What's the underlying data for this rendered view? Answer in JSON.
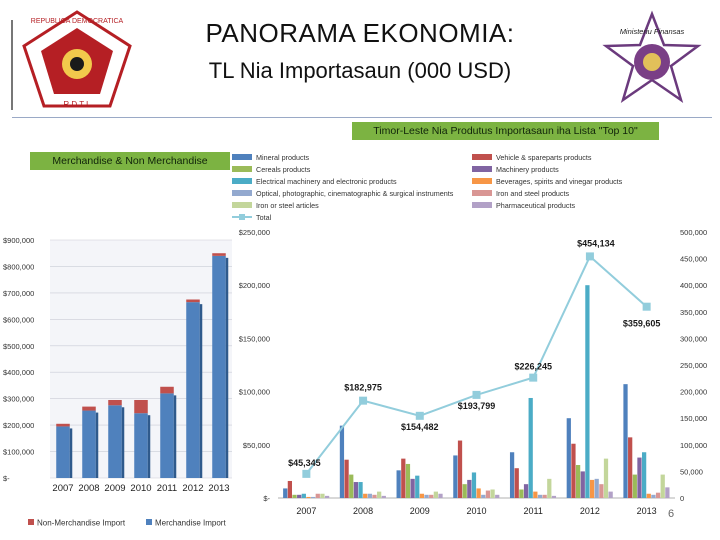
{
  "header": {
    "title": "PANORAMA EKONOMIA:",
    "subtitle": "TL  Nia Importasaun (000 USD)",
    "left_logo_text": "REPUBLICA DEMOCRATICA DE TIMOR LESTE — R D T L",
    "right_logo_text": "Ministeriu Finansas — Republica Democratica de Timor-Leste"
  },
  "badges": {
    "left": "Merchandise & Non Merchandise",
    "right": "Timor-Leste Nia Produtus Importasaun iha Lista \"Top 10\""
  },
  "page_number": "6",
  "colors": {
    "blue": "#4f81bd",
    "red": "#c0504d",
    "green": "#9bbb59",
    "purple": "#8064a2",
    "teal": "#4bacc6",
    "orange": "#f79646",
    "lightblue": "#93a9cf",
    "pink": "#d99694",
    "lightgreen": "#c3d69b",
    "mauve": "#b2a1c7",
    "line": "#92cddc"
  },
  "chart_data": [
    {
      "type": "bar",
      "stacked": true,
      "categories": [
        "2007",
        "2008",
        "2009",
        "2010",
        "2011",
        "2012",
        "2013"
      ],
      "series": [
        {
          "name": "Non-Merchandise Import",
          "values": [
            10000,
            15000,
            20000,
            50000,
            25000,
            10000,
            10000
          ],
          "color": "#c0504d"
        },
        {
          "name": "Merchandise Import",
          "values": [
            195000,
            255000,
            275000,
            245000,
            320000,
            665000,
            840000
          ],
          "color": "#4f81bd"
        }
      ],
      "ylim": [
        0,
        900000
      ],
      "yticks": [
        0,
        100000,
        200000,
        300000,
        400000,
        500000,
        600000,
        700000,
        800000,
        900000
      ],
      "ytick_labels": [
        "$-",
        "$100,000",
        "$200,000",
        "$300,000",
        "$400,000",
        "$500,000",
        "$600,000",
        "$700,000",
        "$800,000",
        "$900,000"
      ],
      "legend": "bottom"
    },
    {
      "type": "bar",
      "categories": [
        "2007",
        "2008",
        "2009",
        "2010",
        "2011",
        "2012",
        "2013"
      ],
      "series": [
        {
          "name": "Mineral products",
          "values": [
            9000,
            68000,
            26000,
            40000,
            43000,
            75000,
            107000
          ],
          "color": "#4f81bd",
          "axis": "left"
        },
        {
          "name": "Vehicle & spareparts products",
          "values": [
            16000,
            36000,
            37000,
            54000,
            28000,
            51000,
            57000
          ],
          "color": "#c0504d",
          "axis": "left"
        },
        {
          "name": "Cereals products",
          "values": [
            3000,
            22000,
            32000,
            13000,
            8000,
            31000,
            22000
          ],
          "color": "#9bbb59",
          "axis": "left"
        },
        {
          "name": "Machinery products",
          "values": [
            3000,
            15000,
            18000,
            17000,
            13000,
            25000,
            38000
          ],
          "color": "#8064a2",
          "axis": "left"
        },
        {
          "name": "Electrical machinery and electronic products",
          "values": [
            4000,
            15000,
            21000,
            24000,
            94000,
            200000,
            43000
          ],
          "color": "#4bacc6",
          "axis": "left"
        },
        {
          "name": "Beverages, spirits and vinegar products",
          "values": [
            1000,
            4000,
            4000,
            9000,
            6000,
            17000,
            4000
          ],
          "color": "#f79646",
          "axis": "left"
        },
        {
          "name": "Optical, photographic, cinematographic  &  surgical instruments",
          "values": [
            1000,
            4000,
            3000,
            3000,
            3000,
            18000,
            3000
          ],
          "color": "#93a9cf",
          "axis": "left"
        },
        {
          "name": "Iron and steel products",
          "values": [
            4000,
            3000,
            3000,
            7000,
            3000,
            13000,
            5000
          ],
          "color": "#d99694",
          "axis": "left"
        },
        {
          "name": "Iron or steel articles",
          "values": [
            4000,
            6000,
            6000,
            8000,
            18000,
            37000,
            22000
          ],
          "color": "#c3d69b",
          "axis": "left"
        },
        {
          "name": "Pharmaceutical products",
          "values": [
            2000,
            2000,
            4000,
            3000,
            2000,
            6000,
            10000
          ],
          "color": "#b2a1c7",
          "axis": "left"
        },
        {
          "name": "Total",
          "type": "line",
          "values": [
            45345,
            182975,
            154482,
            193799,
            226245,
            454134,
            359605
          ],
          "color": "#92cddc",
          "axis": "right"
        }
      ],
      "data_labels": [
        "$45,345",
        "$182,975",
        "$154,482",
        "$193,799",
        "$226,245",
        "$454,134",
        "$359,605"
      ],
      "ylim_left": [
        0,
        250000
      ],
      "yticks_left": [
        0,
        50000,
        100000,
        150000,
        200000,
        250000
      ],
      "ytick_labels_left": [
        "$-",
        "$50,000",
        "$100,000",
        "$150,000",
        "$200,000",
        "$250,000"
      ],
      "ylim_right": [
        0,
        500000
      ],
      "yticks_right": [
        0,
        50000,
        100000,
        150000,
        200000,
        250000,
        300000,
        350000,
        400000,
        450000,
        500000
      ],
      "ytick_labels_right": [
        "0",
        "50,000",
        "100,000",
        "150,000",
        "200,000",
        "250,000",
        "300,000",
        "350,000",
        "400,000",
        "450,000",
        "500,000"
      ],
      "legend": "top"
    }
  ]
}
